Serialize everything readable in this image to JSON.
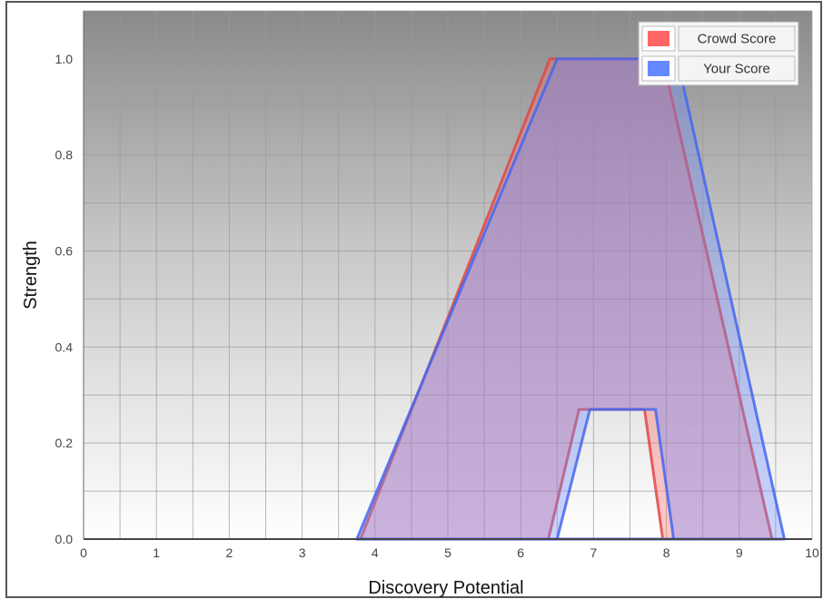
{
  "chart_data": {
    "type": "area",
    "title": "",
    "xlabel": "Discovery Potential",
    "ylabel": "Strength",
    "xlim": [
      0,
      10
    ],
    "ylim": [
      0,
      1.1
    ],
    "x_ticks": [
      "0",
      "1",
      "2",
      "3",
      "4",
      "5",
      "6",
      "7",
      "8",
      "9",
      "10"
    ],
    "y_ticks": [
      "0.0",
      "0.2",
      "0.4",
      "0.6",
      "0.8",
      "1.0"
    ],
    "grid": true,
    "legend_position": "top-right",
    "series": [
      {
        "name": "Crowd Score",
        "color": "#ff6666",
        "stroke": "#e04848",
        "outer": [
          [
            3.8,
            0
          ],
          [
            6.4,
            1.0
          ],
          [
            7.95,
            1.0
          ],
          [
            9.45,
            0
          ]
        ],
        "inner": [
          [
            6.38,
            0
          ],
          [
            6.8,
            0.27
          ],
          [
            7.7,
            0.27
          ],
          [
            7.95,
            0
          ]
        ]
      },
      {
        "name": "Your Score",
        "color": "#6688ff",
        "stroke": "#4466ee",
        "outer": [
          [
            3.75,
            0
          ],
          [
            6.5,
            1.0
          ],
          [
            8.15,
            1.0
          ],
          [
            9.62,
            0
          ]
        ],
        "inner": [
          [
            6.5,
            0
          ],
          [
            6.95,
            0.27
          ],
          [
            7.85,
            0.27
          ],
          [
            8.1,
            0
          ]
        ]
      }
    ]
  }
}
